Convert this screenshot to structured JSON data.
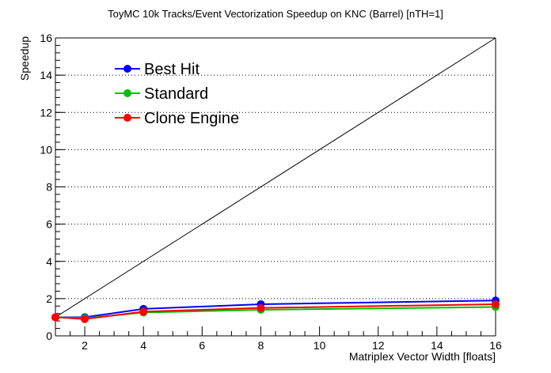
{
  "chart_data": {
    "type": "line",
    "title": "ToyMC 10k Tracks/Event Vectorization Speedup on KNC (Barrel) [nTH=1]",
    "xlabel": "Matriplex Vector Width [floats]",
    "ylabel": "Speedup",
    "xlim": [
      1,
      16
    ],
    "ylim": [
      0,
      16
    ],
    "x_ticks": [
      2,
      4,
      6,
      8,
      10,
      12,
      14,
      16
    ],
    "y_ticks": [
      0,
      2,
      4,
      6,
      8,
      10,
      12,
      14,
      16
    ],
    "grid": "horizontal dotted",
    "legend_position": "top-left",
    "x": [
      1,
      2,
      4,
      8,
      16
    ],
    "series": [
      {
        "name": "Best Hit",
        "color": "#0000ff",
        "values": [
          1.0,
          1.0,
          1.45,
          1.7,
          1.9
        ]
      },
      {
        "name": "Standard",
        "color": "#00c000",
        "values": [
          1.0,
          0.95,
          1.25,
          1.4,
          1.55
        ]
      },
      {
        "name": "Clone Engine",
        "color": "#ff0000",
        "values": [
          1.0,
          0.9,
          1.3,
          1.5,
          1.7
        ]
      }
    ],
    "reference_line": {
      "x": [
        1,
        16
      ],
      "y": [
        1,
        16
      ],
      "color": "#000000"
    }
  }
}
